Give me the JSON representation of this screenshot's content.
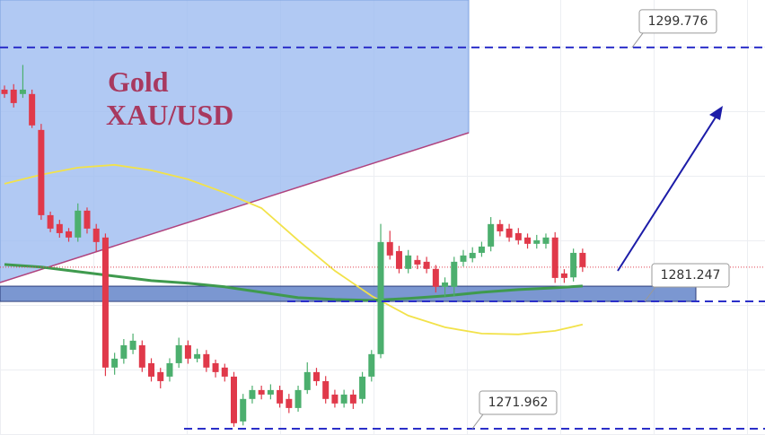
{
  "chart_data": {
    "type": "candlestick",
    "title": "Gold",
    "subtitle": "XAU/USD",
    "ylim": [
      1271.5,
      1303.24
    ],
    "up_color": "#4caf6e",
    "down_color": "#e0394a",
    "candles": {
      "open": [
        1296.7,
        1296.7,
        1296.38,
        1296.38,
        1293.76,
        1287.54,
        1286.89,
        1286.36,
        1285.91,
        1287.87,
        1286.56,
        1285.91,
        1276.42,
        1277.07,
        1277.72,
        1278.05,
        1276.74,
        1276.09,
        1275.76,
        1276.74,
        1278.05,
        1277.07,
        1277.4,
        1276.74,
        1276.42,
        1275.76,
        1272.49,
        1274.13,
        1274.78,
        1274.45,
        1274.78,
        1274.13,
        1273.47,
        1274.78,
        1276.09,
        1275.43,
        1274.45,
        1273.8,
        1274.45,
        1274.13,
        1275.76,
        1277.4,
        1285.58,
        1284.92,
        1283.62,
        1284.27,
        1284.14,
        1283.62,
        1282.31,
        1282.31,
        1284.14,
        1284.4,
        1284.79,
        1285.25,
        1286.89,
        1286.56,
        1286.23,
        1285.91,
        1285.45,
        1285.45,
        1285.91,
        1283.29,
        1283.0,
        1284.79
      ],
      "high": [
        1297.0,
        1297.1,
        1298.5,
        1296.7,
        1294.2,
        1287.8,
        1287.2,
        1286.6,
        1288.4,
        1288.1,
        1286.9,
        1286.2,
        1277.5,
        1278.5,
        1278.9,
        1278.4,
        1277.1,
        1276.4,
        1277.1,
        1278.6,
        1278.4,
        1277.8,
        1277.7,
        1277.0,
        1276.7,
        1276.1,
        1274.5,
        1275.1,
        1275.1,
        1275.2,
        1275.1,
        1274.5,
        1275.1,
        1276.8,
        1276.4,
        1275.8,
        1274.8,
        1274.8,
        1274.8,
        1276.1,
        1277.7,
        1286.9,
        1286.4,
        1285.3,
        1285.0,
        1284.6,
        1284.5,
        1283.9,
        1283.0,
        1284.5,
        1285.0,
        1285.2,
        1285.6,
        1287.4,
        1287.2,
        1286.9,
        1286.6,
        1286.2,
        1286.1,
        1286.2,
        1286.3,
        1283.6,
        1285.1,
        1285.1
      ],
      "low": [
        1296.1,
        1295.4,
        1296.1,
        1293.9,
        1287.2,
        1286.3,
        1285.9,
        1285.6,
        1285.6,
        1286.2,
        1284.9,
        1275.8,
        1275.9,
        1276.7,
        1277.4,
        1276.1,
        1275.4,
        1274.9,
        1275.4,
        1276.4,
        1276.7,
        1276.8,
        1276.1,
        1275.7,
        1275.4,
        1272.1,
        1272.2,
        1273.8,
        1274.1,
        1274.1,
        1273.5,
        1273.1,
        1273.2,
        1274.5,
        1275.1,
        1273.8,
        1273.5,
        1273.5,
        1273.4,
        1273.8,
        1275.4,
        1277.1,
        1284.3,
        1283.3,
        1283.3,
        1283.6,
        1283.3,
        1281.9,
        1281.6,
        1281.6,
        1283.8,
        1284.1,
        1284.5,
        1284.9,
        1286.0,
        1285.6,
        1285.4,
        1285.1,
        1285.1,
        1285.1,
        1282.6,
        1282.6,
        1282.7,
        1283.4
      ],
      "close": [
        1296.38,
        1295.72,
        1296.7,
        1294.09,
        1287.54,
        1286.56,
        1286.23,
        1285.91,
        1287.87,
        1286.56,
        1285.58,
        1276.42,
        1277.07,
        1278.05,
        1278.38,
        1276.42,
        1275.76,
        1275.43,
        1276.74,
        1278.05,
        1277.07,
        1277.4,
        1276.42,
        1276.09,
        1275.76,
        1272.36,
        1274.13,
        1274.78,
        1274.45,
        1274.78,
        1273.8,
        1273.47,
        1274.78,
        1276.09,
        1275.43,
        1274.13,
        1273.8,
        1274.45,
        1273.8,
        1275.76,
        1277.4,
        1285.58,
        1284.6,
        1283.62,
        1284.6,
        1283.94,
        1283.62,
        1282.31,
        1282.63,
        1284.14,
        1284.6,
        1284.79,
        1285.25,
        1286.89,
        1286.36,
        1285.91,
        1285.71,
        1285.45,
        1285.71,
        1285.91,
        1282.96,
        1282.96,
        1284.79,
        1283.75
      ]
    },
    "moving_averages": [
      {
        "color": "#f2e24a",
        "x": [
          0,
          4,
          8,
          12,
          16,
          20,
          24,
          28,
          32,
          36,
          40,
          44,
          48,
          52,
          56,
          60,
          63
        ],
        "values": [
          1289.83,
          1290.49,
          1291.01,
          1291.21,
          1290.81,
          1290.16,
          1289.18,
          1288.06,
          1285.71,
          1283.48,
          1281.65,
          1280.21,
          1279.36,
          1278.9,
          1278.84,
          1279.1,
          1279.56
        ]
      },
      {
        "color": "#3f9a4e",
        "x": [
          0,
          4,
          8,
          12,
          16,
          20,
          24,
          28,
          32,
          36,
          40,
          44,
          48,
          52,
          56,
          60,
          63
        ],
        "values": [
          1283.94,
          1283.75,
          1283.42,
          1283.09,
          1282.76,
          1282.57,
          1282.31,
          1281.91,
          1281.52,
          1281.39,
          1281.32,
          1281.46,
          1281.65,
          1281.91,
          1282.11,
          1282.24,
          1282.37
        ]
      }
    ],
    "levels": [
      1299.776,
      1281.247,
      1271.962
    ]
  }
}
